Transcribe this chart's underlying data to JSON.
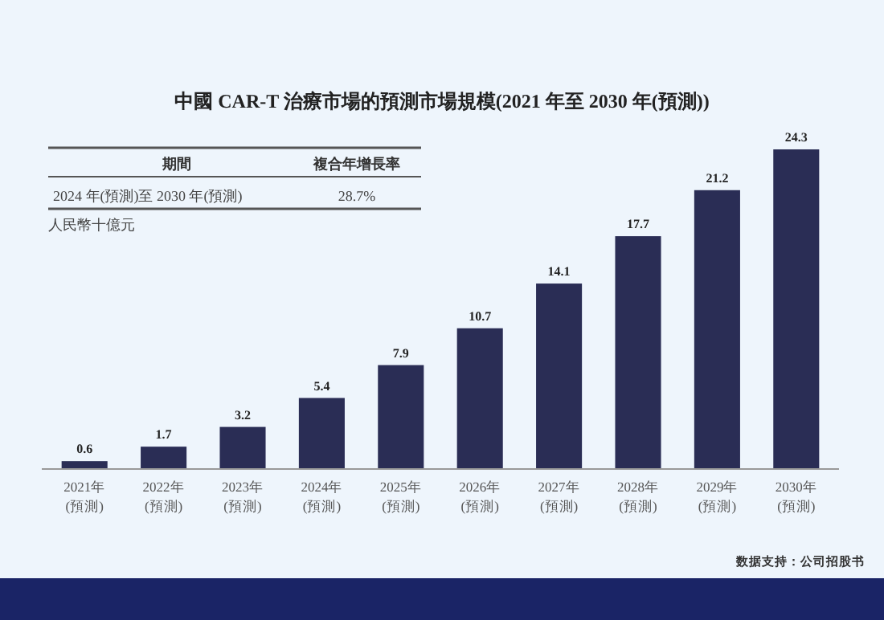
{
  "chart_data": {
    "type": "bar",
    "title": "中國 CAR-T 治療市場的預測市場規模(2021 年至 2030 年(預測))",
    "categories": [
      "2021年\n(預測)",
      "2022年\n(預測)",
      "2023年\n(預測)",
      "2024年\n(預測)",
      "2025年\n(預測)",
      "2026年\n(預測)",
      "2027年\n(預測)",
      "2028年\n(預測)",
      "2029年\n(預測)",
      "2030年\n(預測)"
    ],
    "values": [
      0.6,
      1.7,
      3.2,
      5.4,
      7.9,
      10.7,
      14.1,
      17.7,
      21.2,
      24.3
    ],
    "color": "#2a2d55",
    "data_labels": true,
    "annotations": [
      "期間",
      "複合年增長率",
      "2024 年(預測)至 2030 年(預測)",
      "28.7%",
      "人民幣十億元",
      "数据支持：公司招股书"
    ]
  }
}
